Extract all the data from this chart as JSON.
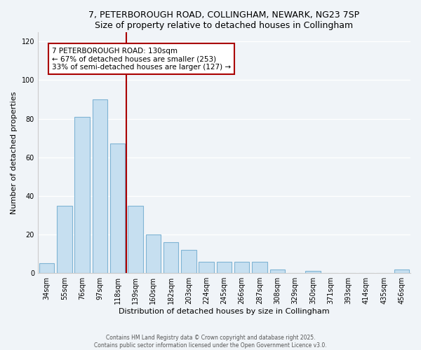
{
  "title1": "7, PETERBOROUGH ROAD, COLLINGHAM, NEWARK, NG23 7SP",
  "title2": "Size of property relative to detached houses in Collingham",
  "xlabel": "Distribution of detached houses by size in Collingham",
  "ylabel": "Number of detached properties",
  "categories": [
    "34sqm",
    "55sqm",
    "76sqm",
    "97sqm",
    "118sqm",
    "139sqm",
    "160sqm",
    "182sqm",
    "203sqm",
    "224sqm",
    "245sqm",
    "266sqm",
    "287sqm",
    "308sqm",
    "329sqm",
    "350sqm",
    "371sqm",
    "393sqm",
    "414sqm",
    "435sqm",
    "456sqm"
  ],
  "values": [
    5,
    35,
    81,
    90,
    67,
    35,
    20,
    16,
    12,
    6,
    6,
    6,
    6,
    2,
    0,
    1,
    0,
    0,
    0,
    0,
    2
  ],
  "bar_color": "#c6dff0",
  "bar_edge_color": "#7fb4d4",
  "vline_x_idx": 4.5,
  "vline_color": "#aa0000",
  "annotation_title": "7 PETERBOROUGH ROAD: 130sqm",
  "annotation_line1": "← 67% of detached houses are smaller (253)",
  "annotation_line2": "33% of semi-detached houses are larger (127) →",
  "annotation_box_color": "#ffffff",
  "annotation_box_edge": "#aa0000",
  "ylim": [
    0,
    125
  ],
  "yticks": [
    0,
    20,
    40,
    60,
    80,
    100,
    120
  ],
  "footer1": "Contains HM Land Registry data © Crown copyright and database right 2025.",
  "footer2": "Contains public sector information licensed under the Open Government Licence v3.0.",
  "background_color": "#f0f4f8",
  "grid_color": "#ffffff",
  "title_fontsize": 9,
  "axis_label_fontsize": 8,
  "tick_fontsize": 7
}
